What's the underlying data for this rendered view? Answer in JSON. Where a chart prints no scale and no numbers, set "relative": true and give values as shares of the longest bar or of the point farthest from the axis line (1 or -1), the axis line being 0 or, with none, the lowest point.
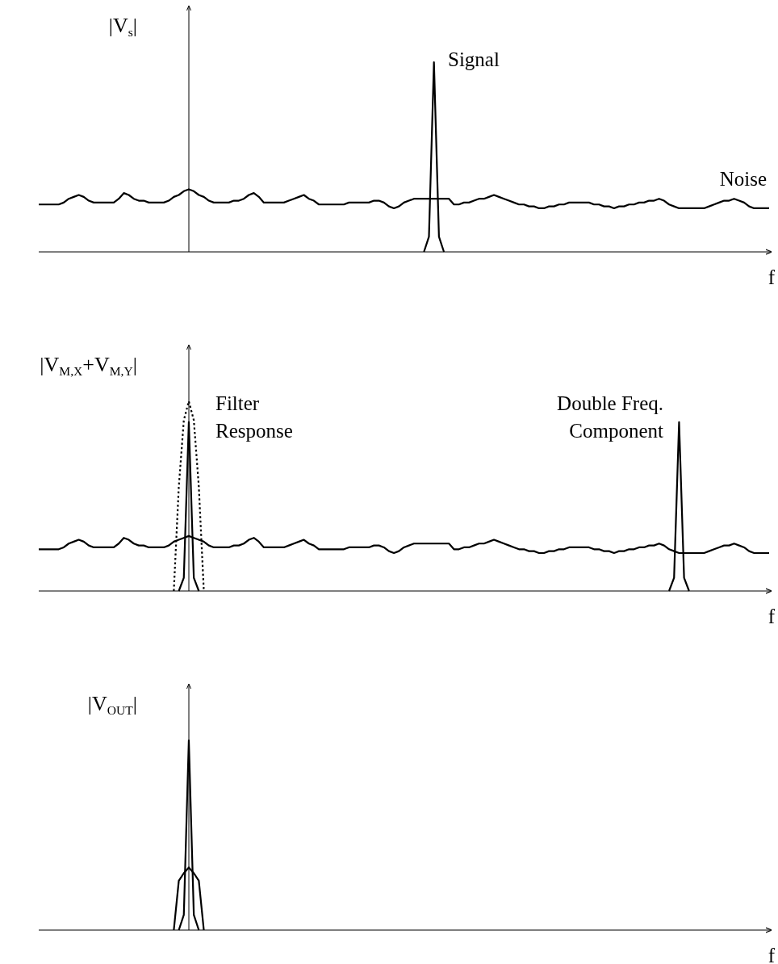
{
  "chart_data": [
    {
      "type": "line",
      "relative": true,
      "ylabel": "|V$_{s}$|",
      "xlabel": "f",
      "categories": [
        null,
        null,
        null,
        null,
        null,
        null,
        null,
        null,
        null,
        null,
        null,
        null,
        null,
        null,
        null,
        null,
        null,
        null,
        null,
        null,
        null,
        null,
        null,
        null,
        null,
        null,
        null,
        null,
        null,
        null,
        null,
        null,
        null,
        null,
        null,
        null,
        null,
        null,
        null,
        null,
        null,
        null,
        null,
        null,
        null,
        null,
        null,
        null,
        null,
        null,
        null,
        null,
        null,
        null,
        null,
        null,
        null,
        null,
        null,
        null,
        null,
        null,
        null,
        null,
        null,
        null,
        null,
        null,
        null,
        null,
        null,
        null,
        null,
        null,
        null,
        null,
        null,
        null,
        null,
        null,
        null,
        null,
        null,
        null,
        null,
        null,
        null,
        null,
        null,
        null,
        null,
        null,
        null,
        null,
        null,
        null,
        null,
        null,
        null,
        null,
        null,
        null,
        null,
        null,
        null,
        null,
        null,
        null,
        null,
        null,
        null,
        null,
        null,
        null,
        null,
        null,
        null,
        null,
        null,
        null,
        null,
        null,
        null,
        null,
        null,
        null,
        null,
        null,
        null,
        null,
        null,
        null,
        null,
        null,
        null,
        null,
        null,
        null,
        null,
        null,
        null,
        null,
        null,
        null,
        null,
        null,
        null
      ],
      "annotations": [
        "Signal",
        "Noise"
      ],
      "series": [
        {
          "color": "#000000",
          "line_style": "solid",
          "values": [
            0.25,
            0.25,
            0.25,
            0.25,
            0.25,
            0.26,
            0.28,
            0.29,
            0.3,
            0.29,
            0.27,
            0.26,
            0.26,
            0.26,
            0.26,
            0.26,
            0.28,
            0.31,
            0.3,
            0.28,
            0.27,
            0.27,
            0.26,
            0.26,
            0.26,
            0.26,
            0.27,
            0.29,
            0.3,
            0.32,
            0.33,
            0.32,
            0.3,
            0.29,
            0.27,
            0.26,
            0.26,
            0.26,
            0.26,
            0.27,
            0.27,
            0.28,
            0.3,
            0.31,
            0.29,
            0.26,
            0.26,
            0.26,
            0.26,
            0.26,
            0.27,
            0.28,
            0.29,
            0.3,
            0.28,
            0.27,
            0.25,
            0.25,
            0.25,
            0.25,
            0.25,
            0.25,
            0.26,
            0.26,
            0.26,
            0.26,
            0.26,
            0.27,
            0.27,
            0.26,
            0.24,
            0.23,
            0.24,
            0.26,
            0.27,
            0.28,
            0.28,
            0.28,
            0.28,
            0.28,
            0.28,
            0.28,
            0.28,
            0.25,
            0.25,
            0.26,
            0.26,
            0.27,
            0.28,
            0.28,
            0.29,
            0.3,
            0.29,
            0.28,
            0.27,
            0.26,
            0.25,
            0.25,
            0.24,
            0.24,
            0.23,
            0.23,
            0.24,
            0.24,
            0.25,
            0.25,
            0.26,
            0.26,
            0.26,
            0.26,
            0.26,
            0.25,
            0.25,
            0.24,
            0.24,
            0.23,
            0.24,
            0.24,
            0.25,
            0.25,
            0.26,
            0.26,
            0.27,
            0.27,
            0.28,
            0.27,
            0.25,
            0.24,
            0.23,
            0.23,
            0.23,
            0.23,
            0.23,
            0.23,
            0.24,
            0.25,
            0.26,
            0.27,
            0.27,
            0.28,
            0.27,
            0.26,
            0.24,
            0.23,
            0.23,
            0.23,
            0.23
          ]
        },
        {
          "color": "#000000",
          "line_style": "solid",
          "values": [
            null,
            null,
            null,
            null,
            null,
            null,
            null,
            null,
            null,
            null,
            null,
            null,
            null,
            null,
            null,
            null,
            null,
            null,
            null,
            null,
            null,
            null,
            null,
            null,
            null,
            null,
            null,
            null,
            null,
            null,
            null,
            null,
            null,
            null,
            null,
            null,
            null,
            null,
            null,
            null,
            null,
            null,
            null,
            null,
            null,
            null,
            null,
            null,
            null,
            null,
            null,
            null,
            null,
            null,
            null,
            null,
            null,
            null,
            null,
            null,
            null,
            null,
            null,
            null,
            null,
            null,
            null,
            null,
            null,
            null,
            null,
            null,
            null,
            null,
            null,
            null,
            null,
            0,
            0.08,
            1,
            0.08,
            0,
            null,
            null,
            null,
            null,
            null,
            null,
            null,
            null,
            null,
            null,
            null,
            null,
            null,
            null,
            null,
            null,
            null,
            null,
            null,
            null,
            null,
            null,
            null,
            null,
            null,
            null,
            null,
            null,
            null,
            null,
            null,
            null,
            null,
            null,
            null,
            null,
            null,
            null,
            null,
            null,
            null,
            null,
            null,
            null,
            null,
            null,
            null,
            null,
            null,
            null,
            null,
            null,
            null,
            null,
            null,
            null,
            null,
            null,
            null,
            null,
            null,
            null,
            null,
            null,
            null
          ]
        }
      ]
    },
    {
      "type": "line",
      "relative": true,
      "ylabel": "|V$_{M,X}$+V$_{M,Y}$|",
      "xlabel": "f",
      "categories": [
        null,
        null,
        null,
        null,
        null,
        null,
        null,
        null,
        null,
        null,
        null,
        null,
        null,
        null,
        null,
        null,
        null,
        null,
        null,
        null,
        null,
        null,
        null,
        null,
        null,
        null,
        null,
        null,
        null,
        null,
        null,
        null,
        null,
        null,
        null,
        null,
        null,
        null,
        null,
        null,
        null,
        null,
        null,
        null,
        null,
        null,
        null,
        null,
        null,
        null,
        null,
        null,
        null,
        null,
        null,
        null,
        null,
        null,
        null,
        null,
        null,
        null,
        null,
        null,
        null,
        null,
        null,
        null,
        null,
        null,
        null,
        null,
        null,
        null,
        null,
        null,
        null,
        null,
        null,
        null,
        null,
        null,
        null,
        null,
        null,
        null,
        null,
        null,
        null,
        null,
        null,
        null,
        null,
        null,
        null,
        null,
        null,
        null,
        null,
        null,
        null,
        null,
        null,
        null,
        null,
        null,
        null,
        null,
        null,
        null,
        null,
        null,
        null,
        null,
        null,
        null,
        null,
        null,
        null,
        null,
        null,
        null,
        null,
        null,
        null,
        null,
        null,
        null,
        null,
        null,
        null,
        null,
        null,
        null,
        null,
        null,
        null,
        null,
        null,
        null,
        null,
        null,
        null,
        null,
        null,
        null,
        null
      ],
      "annotations": [
        "Filter\nResponse",
        "Double Freq.\nComponent"
      ],
      "series": [
        {
          "color": "#000000",
          "line_style": "solid",
          "values": [
            0.22,
            0.22,
            0.22,
            0.22,
            0.22,
            0.23,
            0.25,
            0.26,
            0.27,
            0.26,
            0.24,
            0.23,
            0.23,
            0.23,
            0.23,
            0.23,
            0.25,
            0.28,
            0.27,
            0.25,
            0.24,
            0.24,
            0.23,
            0.23,
            0.23,
            0.23,
            0.24,
            0.26,
            0.27,
            0.28,
            0.29,
            0.28,
            0.27,
            0.26,
            0.24,
            0.23,
            0.23,
            0.23,
            0.23,
            0.24,
            0.24,
            0.25,
            0.27,
            0.28,
            0.26,
            0.23,
            0.23,
            0.23,
            0.23,
            0.23,
            0.24,
            0.25,
            0.26,
            0.27,
            0.25,
            0.24,
            0.22,
            0.22,
            0.22,
            0.22,
            0.22,
            0.22,
            0.23,
            0.23,
            0.23,
            0.23,
            0.23,
            0.24,
            0.24,
            0.23,
            0.21,
            0.2,
            0.21,
            0.23,
            0.24,
            0.25,
            0.25,
            0.25,
            0.25,
            0.25,
            0.25,
            0.25,
            0.25,
            0.22,
            0.22,
            0.23,
            0.23,
            0.24,
            0.25,
            0.25,
            0.26,
            0.27,
            0.26,
            0.25,
            0.24,
            0.23,
            0.22,
            0.22,
            0.21,
            0.21,
            0.2,
            0.2,
            0.21,
            0.21,
            0.22,
            0.22,
            0.23,
            0.23,
            0.23,
            0.23,
            0.23,
            0.22,
            0.22,
            0.21,
            0.21,
            0.2,
            0.21,
            0.21,
            0.22,
            0.22,
            0.23,
            0.23,
            0.24,
            0.24,
            0.25,
            0.24,
            0.22,
            0.21,
            0.2,
            0.2,
            0.2,
            0.2,
            0.2,
            0.2,
            0.21,
            0.22,
            0.23,
            0.24,
            0.24,
            0.25,
            0.24,
            0.23,
            0.21,
            0.2,
            0.2,
            0.2,
            0.2
          ]
        },
        {
          "color": "#000000",
          "line_style": "solid",
          "values": [
            null,
            null,
            null,
            null,
            null,
            null,
            null,
            null,
            null,
            null,
            null,
            null,
            null,
            null,
            null,
            null,
            null,
            null,
            null,
            null,
            null,
            null,
            null,
            null,
            null,
            null,
            null,
            null,
            0,
            0.07,
            0.89,
            0.07,
            0,
            null,
            null,
            null,
            null,
            null,
            null,
            null,
            null,
            null,
            null,
            null,
            null,
            null,
            null,
            null,
            null,
            null,
            null,
            null,
            null,
            null,
            null,
            null,
            null,
            null,
            null,
            null,
            null,
            null,
            null,
            null,
            null,
            null,
            null,
            null,
            null,
            null,
            null,
            null,
            null,
            null,
            null,
            null,
            null,
            null,
            null,
            null,
            null,
            null,
            null,
            null,
            null,
            null,
            null,
            null,
            null,
            null,
            null,
            null,
            null,
            null,
            null,
            null,
            null,
            null,
            null,
            null,
            null,
            null,
            null,
            null,
            null,
            null,
            null,
            null,
            null,
            null,
            null,
            null,
            null,
            null,
            null,
            null,
            null,
            null,
            null,
            null,
            null,
            null,
            null,
            null,
            null,
            null,
            null,
            null,
            null,
            null,
            null,
            null,
            null,
            null,
            null,
            null,
            null,
            null,
            null,
            null,
            null,
            null,
            null,
            null,
            null,
            null,
            null
          ]
        },
        {
          "color": "#000000",
          "line_style": "dotted",
          "values": [
            null,
            null,
            null,
            null,
            null,
            null,
            null,
            null,
            null,
            null,
            null,
            null,
            null,
            null,
            null,
            null,
            null,
            null,
            null,
            null,
            null,
            null,
            null,
            null,
            null,
            null,
            null,
            0,
            0.55,
            0.9,
            1,
            0.9,
            0.55,
            0,
            null,
            null,
            null,
            null,
            null,
            null,
            null,
            null,
            null,
            null,
            null,
            null,
            null,
            null,
            null,
            null,
            null,
            null,
            null,
            null,
            null,
            null,
            null,
            null,
            null,
            null,
            null,
            null,
            null,
            null,
            null,
            null,
            null,
            null,
            null,
            null,
            null,
            null,
            null,
            null,
            null,
            null,
            null,
            null,
            null,
            null,
            null,
            null,
            null,
            null,
            null,
            null,
            null,
            null,
            null,
            null,
            null,
            null,
            null,
            null,
            null,
            null,
            null,
            null,
            null,
            null,
            null,
            null,
            null,
            null,
            null,
            null,
            null,
            null,
            null,
            null,
            null,
            null,
            null,
            null,
            null,
            null,
            null,
            null,
            null,
            null,
            null,
            null,
            null,
            null,
            null,
            null,
            null,
            null,
            null,
            null,
            null,
            null,
            null,
            null,
            null,
            null,
            null,
            null,
            null,
            null,
            null,
            null,
            null,
            null,
            null,
            null,
            null
          ]
        },
        {
          "color": "#000000",
          "line_style": "solid",
          "values": [
            null,
            null,
            null,
            null,
            null,
            null,
            null,
            null,
            null,
            null,
            null,
            null,
            null,
            null,
            null,
            null,
            null,
            null,
            null,
            null,
            null,
            null,
            null,
            null,
            null,
            null,
            null,
            null,
            null,
            null,
            null,
            null,
            null,
            null,
            null,
            null,
            null,
            null,
            null,
            null,
            null,
            null,
            null,
            null,
            null,
            null,
            null,
            null,
            null,
            null,
            null,
            null,
            null,
            null,
            null,
            null,
            null,
            null,
            null,
            null,
            null,
            null,
            null,
            null,
            null,
            null,
            null,
            null,
            null,
            null,
            null,
            null,
            null,
            null,
            null,
            null,
            null,
            null,
            null,
            null,
            null,
            null,
            null,
            null,
            null,
            null,
            null,
            null,
            null,
            null,
            null,
            null,
            null,
            null,
            null,
            null,
            null,
            null,
            null,
            null,
            null,
            null,
            null,
            null,
            null,
            null,
            null,
            null,
            null,
            null,
            null,
            null,
            null,
            null,
            null,
            null,
            null,
            null,
            null,
            null,
            null,
            null,
            null,
            null,
            null,
            null,
            0,
            0.07,
            0.89,
            0.07,
            0,
            null,
            null,
            null,
            null,
            null,
            null,
            null,
            null,
            null,
            null,
            null,
            null,
            null,
            null,
            null,
            null
          ]
        }
      ]
    },
    {
      "type": "line",
      "relative": true,
      "ylabel": "|V$_{OUT}$|",
      "xlabel": "f",
      "categories": [
        null,
        null,
        null,
        null,
        null,
        null,
        null,
        null,
        null,
        null,
        null,
        null,
        null,
        null,
        null,
        null,
        null,
        null,
        null,
        null,
        null,
        null,
        null,
        null,
        null,
        null,
        null,
        null,
        null,
        null,
        null,
        null,
        null,
        null,
        null,
        null,
        null,
        null,
        null,
        null,
        null,
        null,
        null,
        null,
        null,
        null,
        null,
        null,
        null,
        null,
        null,
        null,
        null,
        null,
        null,
        null,
        null,
        null,
        null,
        null,
        null,
        null,
        null,
        null,
        null,
        null,
        null,
        null,
        null,
        null,
        null,
        null,
        null,
        null,
        null,
        null,
        null,
        null,
        null,
        null,
        null,
        null,
        null,
        null,
        null,
        null,
        null,
        null,
        null,
        null,
        null,
        null,
        null,
        null,
        null,
        null,
        null,
        null,
        null,
        null,
        null,
        null,
        null,
        null,
        null,
        null,
        null,
        null,
        null,
        null,
        null,
        null,
        null,
        null,
        null,
        null,
        null,
        null,
        null,
        null,
        null,
        null,
        null,
        null,
        null,
        null,
        null,
        null,
        null,
        null,
        null,
        null,
        null,
        null,
        null,
        null,
        null,
        null,
        null,
        null,
        null,
        null,
        null,
        null,
        null,
        null,
        null
      ],
      "series": [
        {
          "color": "#000000",
          "line_style": "solid",
          "values": [
            null,
            null,
            null,
            null,
            null,
            null,
            null,
            null,
            null,
            null,
            null,
            null,
            null,
            null,
            null,
            null,
            null,
            null,
            null,
            null,
            null,
            null,
            null,
            null,
            null,
            null,
            null,
            0,
            0.26,
            0.3,
            0.33,
            0.3,
            0.26,
            0,
            null,
            null,
            null,
            null,
            null,
            null,
            null,
            null,
            null,
            null,
            null,
            null,
            null,
            null,
            null,
            null,
            null,
            null,
            null,
            null,
            null,
            null,
            null,
            null,
            null,
            null,
            null,
            null,
            null,
            null,
            null,
            null,
            null,
            null,
            null,
            null,
            null,
            null,
            null,
            null,
            null,
            null,
            null,
            null,
            null,
            null,
            null,
            null,
            null,
            null,
            null,
            null,
            null,
            null,
            null,
            null,
            null,
            null,
            null,
            null,
            null,
            null,
            null,
            null,
            null,
            null,
            null,
            null,
            null,
            null,
            null,
            null,
            null,
            null,
            null,
            null,
            null,
            null,
            null,
            null,
            null,
            null,
            null,
            null,
            null,
            null,
            null,
            null,
            null,
            null,
            null,
            null,
            null,
            null,
            null,
            null,
            null,
            null,
            null,
            null,
            null,
            null,
            null,
            null,
            null,
            null,
            null,
            null,
            null,
            null,
            null,
            null,
            null
          ]
        },
        {
          "color": "#000000",
          "line_style": "solid",
          "values": [
            null,
            null,
            null,
            null,
            null,
            null,
            null,
            null,
            null,
            null,
            null,
            null,
            null,
            null,
            null,
            null,
            null,
            null,
            null,
            null,
            null,
            null,
            null,
            null,
            null,
            null,
            null,
            null,
            0,
            0.08,
            1,
            0.08,
            0,
            null,
            null,
            null,
            null,
            null,
            null,
            null,
            null,
            null,
            null,
            null,
            null,
            null,
            null,
            null,
            null,
            null,
            null,
            null,
            null,
            null,
            null,
            null,
            null,
            null,
            null,
            null,
            null,
            null,
            null,
            null,
            null,
            null,
            null,
            null,
            null,
            null,
            null,
            null,
            null,
            null,
            null,
            null,
            null,
            null,
            null,
            null,
            null,
            null,
            null,
            null,
            null,
            null,
            null,
            null,
            null,
            null,
            null,
            null,
            null,
            null,
            null,
            null,
            null,
            null,
            null,
            null,
            null,
            null,
            null,
            null,
            null,
            null,
            null,
            null,
            null,
            null,
            null,
            null,
            null,
            null,
            null,
            null,
            null,
            null,
            null,
            null,
            null,
            null,
            null,
            null,
            null,
            null,
            null,
            null,
            null,
            null,
            null,
            null,
            null,
            null,
            null,
            null,
            null,
            null,
            null,
            null,
            null,
            null,
            null,
            null,
            null,
            null,
            null
          ]
        }
      ]
    }
  ]
}
